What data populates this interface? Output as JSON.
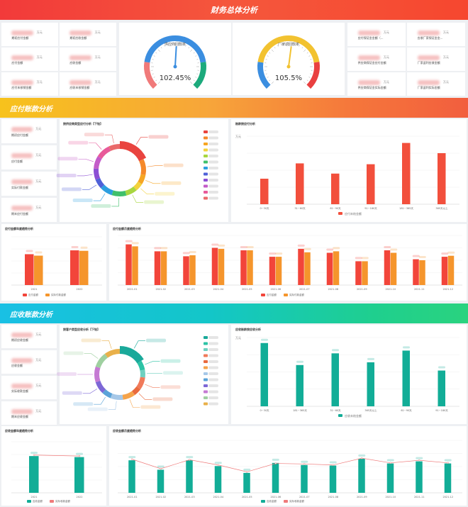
{
  "header": {
    "title": "财务总体分析"
  },
  "overview": {
    "left_kpis": [
      {
        "label": "期初应付金额",
        "unit": "万元"
      },
      {
        "label": "期初应收金额",
        "unit": "万元"
      },
      {
        "label": "应付金额",
        "unit": "万元"
      },
      {
        "label": "应收金额",
        "unit": "万元"
      },
      {
        "label": "应付未核销金额",
        "unit": "万元"
      },
      {
        "label": "应收未核销金额",
        "unit": "万元"
      }
    ],
    "gauges": [
      {
        "label": "供应商回款率",
        "value_text": "102.45%",
        "value": 102.45,
        "colors": [
          "#f07a7a",
          "#3b8ee0",
          "#1caa7c"
        ]
      },
      {
        "label": "厂家返回款率",
        "value_text": "105.5%",
        "value": 105.5,
        "colors": [
          "#3b8ee0",
          "#f2c230",
          "#e94040"
        ]
      }
    ],
    "right_kpis": [
      {
        "label": "应付保证金金额（...",
        "unit": "万元"
      },
      {
        "label": "应收厂家保证金金...",
        "unit": "万元"
      },
      {
        "label": "供应商保证金应付金额",
        "unit": "万元"
      },
      {
        "label": "厂家返利应收金额",
        "unit": "万元"
      },
      {
        "label": "供应商保证金实际金额",
        "unit": "万元"
      },
      {
        "label": "厂家返利实际金额",
        "unit": "万元"
      }
    ]
  },
  "payable": {
    "title": "应付账款分析",
    "kpis": [
      {
        "label": "期初应付金额",
        "unit": "万元"
      },
      {
        "label": "应付金额",
        "unit": "万元"
      },
      {
        "label": "实际付款金额",
        "unit": "万元"
      },
      {
        "label": "期末应付金额",
        "unit": "万元"
      }
    ],
    "donut_title": "按供应商类型应付分析【下钻】",
    "donut_colors": [
      "#e9443f",
      "#f5892a",
      "#f6a623",
      "#f3d23c",
      "#a8d63f",
      "#3fc06b",
      "#2d9fe0",
      "#4f61d8",
      "#8c4fd4",
      "#c45bc9",
      "#e85a9a",
      "#ea6a6a"
    ],
    "donut_values": [
      18,
      10,
      6,
      5,
      7,
      9,
      8,
      6,
      7,
      8,
      9,
      7
    ],
    "age_title": "账龄按应付分析",
    "age_unit": "万元",
    "age_legend": "应付未结金额",
    "age_color": "#f24f3c",
    "age_chart": {
      "type": "bar",
      "categories": [
        "0~30天",
        "31~60天",
        "61~90天",
        "91~180天",
        "181~365天",
        "365天以上"
      ],
      "values": [
        30,
        48,
        36,
        47,
        72,
        60
      ],
      "ylim": [
        0,
        80
      ]
    },
    "yearly_title": "应付金额年度趋势分析",
    "yearly_chart": {
      "type": "bar",
      "categories": [
        "2021",
        "2022"
      ],
      "series": [
        {
          "name": "应付金额",
          "values": [
            64,
            72
          ],
          "color": "#f2453a"
        },
        {
          "name": "实际付款金额",
          "values": [
            61,
            71
          ],
          "color": "#f5952c"
        }
      ],
      "ylim": [
        0,
        100
      ]
    },
    "monthly_title": "应付金额月度趋势分析",
    "monthly_chart": {
      "type": "bar",
      "categories": [
        "2021-01",
        "2021-02",
        "2021-03",
        "2021-04",
        "2021-05",
        "2021-06",
        "2021-07",
        "2021-08",
        "2021-09",
        "2021-10",
        "2021-11",
        "2021-12"
      ],
      "series": [
        {
          "name": "应付金额",
          "values": [
            82,
            68,
            58,
            75,
            70,
            57,
            73,
            65,
            48,
            70,
            52,
            57
          ],
          "color": "#f2453a"
        },
        {
          "name": "实际付款金额",
          "values": [
            78,
            68,
            60,
            73,
            70,
            57,
            66,
            68,
            48,
            65,
            50,
            59
          ],
          "color": "#f5952c"
        }
      ],
      "ylim": [
        0,
        100
      ]
    }
  },
  "receivable": {
    "title": "应收账款分析",
    "kpis": [
      {
        "label": "期初应收金额",
        "unit": "万元"
      },
      {
        "label": "应收金额",
        "unit": "万元"
      },
      {
        "label": "实际收款金额",
        "unit": "万元"
      },
      {
        "label": "期末应收金额",
        "unit": "万元"
      }
    ],
    "donut_title": "按客户类型应收分析【下钻】",
    "donut_colors": [
      "#1aa99a",
      "#2cc3a5",
      "#6fd0c0",
      "#f07a5a",
      "#e96a3e",
      "#f5a34a",
      "#a6c8e8",
      "#5aa3d8",
      "#7d67d6",
      "#c57ad3",
      "#9fd0a0",
      "#e9b04a"
    ],
    "donut_values": [
      16,
      6,
      5,
      8,
      5,
      8,
      8,
      6,
      8,
      10,
      10,
      10
    ],
    "age_title": "应收账龄按应收分析",
    "age_unit": "万元",
    "age_legend": "应收未结金额",
    "age_color": "#12ad97",
    "age_chart": {
      "type": "bar",
      "categories": [
        "0~30天",
        "181~365天",
        "31~60天",
        "365天以上",
        "61~90天",
        "91~180天"
      ],
      "values": [
        92,
        60,
        77,
        64,
        81,
        52
      ],
      "ylim": [
        0,
        100
      ]
    },
    "yearly_title": "应收金额年度趋势分析",
    "yearly_chart": {
      "type": "bar",
      "categories": [
        "2021",
        "2022"
      ],
      "series": [
        {
          "name": "应收金额",
          "values": [
            72,
            70
          ],
          "color": "#12ad97"
        }
      ],
      "line": {
        "name": "实际收款金额",
        "values": [
          74,
          72
        ],
        "color": "#ef7b7b"
      },
      "ylim": [
        0,
        100
      ]
    },
    "monthly_title": "应收金额月度趋势分析",
    "monthly_chart": {
      "type": "bar",
      "categories": [
        "2021-01",
        "2021-02",
        "2021-03",
        "2021-04",
        "2021-05",
        "2021-06",
        "2021-07",
        "2021-08",
        "2021-09",
        "2021-10",
        "2021-11",
        "2021-12"
      ],
      "series": [
        {
          "name": "应收金额",
          "values": [
            62,
            44,
            62,
            51,
            38,
            57,
            53,
            52,
            65,
            56,
            60,
            56
          ],
          "color": "#12ad97"
        }
      ],
      "line": {
        "name": "实际收款金额",
        "values": [
          64,
          46,
          63,
          53,
          40,
          56,
          55,
          53,
          66,
          57,
          62,
          57
        ],
        "color": "#ef7b7b"
      },
      "ylim": [
        0,
        100
      ]
    }
  }
}
